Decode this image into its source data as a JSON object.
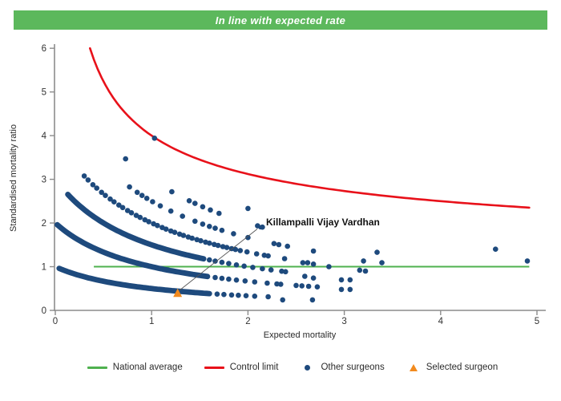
{
  "header": {
    "title": "In line with expected rate",
    "bg_color": "#5cb85c",
    "text_color": "#ffffff"
  },
  "chart_data": {
    "type": "scatter",
    "subtype": "funnel-plot",
    "xlabel": "Expected mortality",
    "ylabel": "Standardised mortality ratio",
    "xlim": [
      0,
      5
    ],
    "ylim": [
      0,
      6
    ],
    "x_ticks": [
      "0",
      "1",
      "2",
      "3",
      "4",
      "5"
    ],
    "y_ticks": [
      "0",
      "1",
      "2",
      "3",
      "4",
      "5",
      "6"
    ],
    "grid": false,
    "axis_color": "#8c8c8c",
    "tick_label_color": "#333333",
    "national_average": {
      "y": 1,
      "x_start": 0.4,
      "x_end": 4.92,
      "color": "#4fb14f"
    },
    "control_limit": {
      "formula": "y = 1 + 3/sqrt(x)",
      "x_start": 0.36,
      "x_end": 4.92,
      "color": "#e8111a",
      "sample_points": [
        [
          0.36,
          6.0
        ],
        [
          0.5,
          5.24
        ],
        [
          0.75,
          4.46
        ],
        [
          1.0,
          4.0
        ],
        [
          1.5,
          3.45
        ],
        [
          2.0,
          3.12
        ],
        [
          2.5,
          2.9
        ],
        [
          3.0,
          2.73
        ],
        [
          3.5,
          2.6
        ],
        [
          4.0,
          2.5
        ],
        [
          4.5,
          2.41
        ],
        [
          4.92,
          2.35
        ]
      ]
    },
    "other_surgeons": {
      "color": "#1e4a7d",
      "marker": "circle",
      "smr_model": "y = (observed+1)/(expected+1)",
      "arcs": [
        {
          "observed": 0,
          "band_x": [
            0.04,
            1.62
          ],
          "dots_x": [
            1.68,
            1.75,
            1.83,
            1.9,
            1.98,
            2.07,
            2.21
          ]
        },
        {
          "observed": 1,
          "band_x": [
            0.02,
            1.6
          ],
          "dots_x": [
            1.66,
            1.73,
            1.8,
            1.88,
            1.97,
            2.07,
            2.2,
            2.3,
            2.34,
            2.5,
            2.56,
            2.63,
            2.72
          ]
        },
        {
          "observed": 2,
          "band_x": [
            0.13,
            1.55
          ],
          "dots_x": [
            1.6,
            1.66,
            1.73,
            1.8,
            1.88,
            1.96,
            2.05,
            2.15,
            2.24,
            2.35,
            2.39
          ]
        },
        {
          "observed": 3,
          "band_x": null,
          "dots_x": [
            0.3,
            0.34,
            0.39,
            0.43,
            0.48,
            0.52,
            0.57,
            0.61,
            0.66,
            0.7,
            0.75,
            0.79,
            0.84,
            0.88,
            0.93,
            0.97,
            1.02,
            1.06,
            1.11,
            1.15,
            1.2,
            1.24,
            1.29,
            1.33,
            1.38,
            1.42,
            1.47,
            1.51,
            1.56,
            1.6,
            1.65,
            1.69,
            1.74,
            1.78,
            1.83,
            1.87,
            1.92,
            1.99,
            2.09,
            2.17,
            2.21,
            2.38
          ]
        },
        {
          "observed": 4,
          "band_x": null,
          "dots_x": [
            0.77,
            0.85,
            0.9,
            0.95,
            1.01,
            1.09,
            1.2,
            1.32,
            1.45,
            1.53,
            1.6,
            1.66,
            1.73,
            1.85,
            2.0,
            2.27,
            2.32,
            2.41,
            2.68
          ]
        },
        {
          "observed": 5,
          "band_x": null,
          "dots_x": [
            0.73,
            1.21,
            1.39,
            1.45,
            1.53,
            1.61,
            1.7,
            2.1,
            2.15
          ]
        },
        {
          "observed": 6,
          "band_x": null,
          "dots_x": [
            2.0
          ]
        },
        {
          "observed": 7,
          "band_x": null,
          "dots_x": [
            1.03
          ]
        }
      ],
      "scatter_points": [
        [
          2.36,
          0.24
        ],
        [
          2.67,
          0.24
        ],
        [
          2.57,
          1.09
        ],
        [
          2.62,
          1.09
        ],
        [
          2.68,
          1.06
        ],
        [
          2.84,
          1.0
        ],
        [
          2.59,
          0.78
        ],
        [
          2.68,
          0.74
        ],
        [
          2.97,
          0.7
        ],
        [
          3.06,
          0.7
        ],
        [
          2.97,
          0.48
        ],
        [
          3.06,
          0.48
        ],
        [
          3.16,
          0.92
        ],
        [
          3.22,
          0.9
        ],
        [
          3.2,
          1.13
        ],
        [
          3.34,
          1.33
        ],
        [
          3.39,
          1.09
        ],
        [
          4.57,
          1.4
        ],
        [
          4.9,
          1.13
        ]
      ]
    },
    "selected_surgeon": {
      "label": "Killampalli Vijay Vardhan",
      "x": 1.27,
      "y": 0.4,
      "color": "#f28a1e",
      "marker": "triangle",
      "callout_line_color": "#555555",
      "callout_dot": [
        2.13,
        1.9
      ]
    }
  },
  "legend": {
    "items": [
      {
        "label": "National average",
        "marker": "line",
        "color": "#4fb14f"
      },
      {
        "label": "Control limit",
        "marker": "line",
        "color": "#e8111a"
      },
      {
        "label": "Other surgeons",
        "marker": "dot",
        "color": "#1e4a7d"
      },
      {
        "label": "Selected surgeon",
        "marker": "triangle",
        "color": "#f28a1e"
      }
    ]
  }
}
